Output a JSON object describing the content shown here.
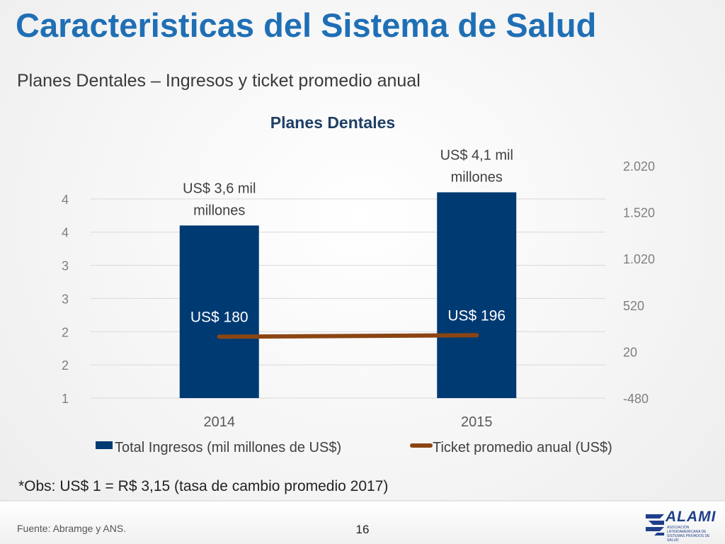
{
  "slide": {
    "title": "Caracteristicas del Sistema de Salud",
    "subtitle": "Planes Dentales – Ingresos y ticket promedio anual",
    "note": "*Obs: US$ 1 = R$ 3,15 (tasa de cambio promedio 2017)",
    "source": "Fuente: Abramge y ANS.",
    "page_number": "16",
    "logo": {
      "name": "ALAMI",
      "tagline": "ASOCIACIÓN LATINOAMERICANA DE SISTEMAS PRIVADOS DE SALUD",
      "color": "#1f3f8a"
    }
  },
  "chart_data": {
    "type": "bar",
    "title": "Planes Dentales",
    "categories": [
      "2014",
      "2015"
    ],
    "series": [
      {
        "name": "Total Ingresos (mil millones de US$)",
        "type": "bar",
        "axis": "left",
        "color": "#003a73",
        "values": [
          3.6,
          4.1
        ],
        "labels": [
          "US$ 3,6 mil millones",
          "US$ 4,1 mil millones"
        ]
      },
      {
        "name": "Ticket promedio anual (US$)",
        "type": "line",
        "axis": "right",
        "color": "#8b4513",
        "values": [
          180,
          196
        ],
        "labels": [
          "US$ 180",
          "US$ 196"
        ]
      }
    ],
    "y_left": {
      "range": [
        1,
        4.5
      ],
      "tick_values": [
        1,
        1.5,
        2,
        2.5,
        3,
        3.5,
        4
      ],
      "tick_labels": [
        "1",
        "2",
        "2",
        "3",
        "3",
        "4",
        "4"
      ]
    },
    "y_right": {
      "range": [
        -480,
        2020
      ],
      "ticks": [
        -480,
        20,
        520,
        1020,
        1520,
        2020
      ],
      "tick_labels": [
        "-480",
        "20",
        "520",
        "1.020",
        "1.520",
        "2.020"
      ]
    },
    "grid": true,
    "legend": "bottom"
  }
}
